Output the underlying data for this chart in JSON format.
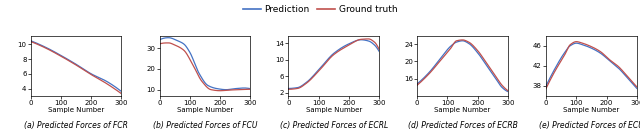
{
  "legend_labels": [
    "Prediction",
    "Ground truth"
  ],
  "pred_color": "#4472C4",
  "gt_color": "#C0504D",
  "linewidth": 0.9,
  "title_fontsize": 5.5,
  "tick_fontsize": 5.0,
  "label_fontsize": 5.0,
  "legend_fontsize": 6.5,
  "subplots": [
    {
      "title": "(a) Predicted Forces of FCR",
      "xlabel": "Sample Number",
      "yticks": [
        4,
        6,
        8,
        10
      ],
      "ylim": [
        3.0,
        11.2
      ],
      "xlim": [
        0,
        300
      ],
      "xticks": [
        0,
        100,
        200,
        300
      ]
    },
    {
      "title": "(b) Predicted Forces of FCU",
      "xlabel": "Sample Number",
      "yticks": [
        10,
        20,
        30
      ],
      "ylim": [
        7,
        36
      ],
      "xlim": [
        0,
        300
      ],
      "xticks": [
        0,
        100,
        200,
        300
      ]
    },
    {
      "title": "(c) Predicted Forces of ECRL",
      "xlabel": "Sample Number",
      "yticks": [
        2,
        6,
        10,
        14
      ],
      "ylim": [
        1.2,
        15.8
      ],
      "xlim": [
        0,
        300
      ],
      "xticks": [
        0,
        100,
        200,
        300
      ]
    },
    {
      "title": "(d) Predicted Forces of ECRB",
      "xlabel": "Sample Number",
      "yticks": [
        16,
        20,
        24
      ],
      "ylim": [
        12,
        26
      ],
      "xlim": [
        0,
        300
      ],
      "xticks": [
        0,
        100,
        200,
        300
      ]
    },
    {
      "title": "(e) Predicted Forces of ECU",
      "xlabel": "Sample Number",
      "yticks": [
        38,
        42,
        46
      ],
      "ylim": [
        36,
        48
      ],
      "xlim": [
        0,
        300
      ],
      "xticks": [
        0,
        100,
        200,
        300
      ]
    }
  ]
}
